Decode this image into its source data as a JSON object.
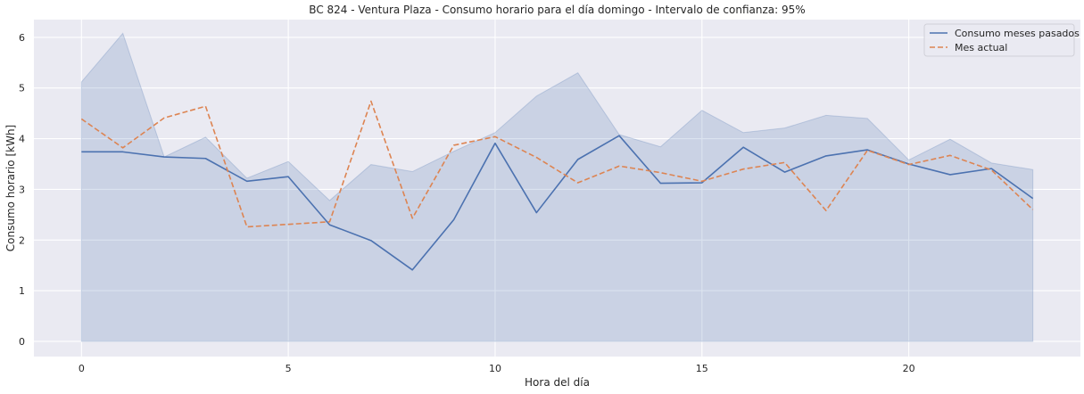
{
  "chart_data": {
    "type": "line",
    "title": "BC 824 - Ventura Plaza - Consumo horario para el día domingo - Intervalo de confianza: 95%",
    "xlabel": "Hora del día",
    "ylabel": "Consumo horario [kWh]",
    "x": [
      0,
      1,
      2,
      3,
      4,
      5,
      6,
      7,
      8,
      9,
      10,
      11,
      12,
      13,
      14,
      15,
      16,
      17,
      18,
      19,
      20,
      21,
      22,
      23
    ],
    "xlim": [
      -1.15,
      24.15
    ],
    "ylim": [
      -0.3,
      6.35
    ],
    "xticks": [
      0,
      5,
      10,
      15,
      20
    ],
    "yticks": [
      0,
      1,
      2,
      3,
      4,
      5,
      6
    ],
    "grid": true,
    "legend_position": "top-right",
    "band": {
      "lower": [
        0,
        0,
        0,
        0,
        0,
        0,
        0,
        0,
        0,
        0,
        0,
        0,
        0,
        0,
        0,
        0,
        0,
        0,
        0,
        0,
        0,
        0,
        0,
        0
      ],
      "upper": [
        5.12,
        6.08,
        3.64,
        4.03,
        3.22,
        3.55,
        2.78,
        3.49,
        3.35,
        3.75,
        4.12,
        4.84,
        5.3,
        4.08,
        3.84,
        4.56,
        4.12,
        4.21,
        4.46,
        4.4,
        3.58,
        3.99,
        3.52,
        3.39
      ],
      "color": "#4c72b0"
    },
    "series": [
      {
        "name": "Consumo meses pasados",
        "color": "#4c72b0",
        "style": "solid",
        "values": [
          3.74,
          3.74,
          3.64,
          3.61,
          3.16,
          3.25,
          2.3,
          1.99,
          1.41,
          2.4,
          3.91,
          2.54,
          3.59,
          4.06,
          3.12,
          3.13,
          3.83,
          3.34,
          3.66,
          3.78,
          3.5,
          3.29,
          3.41,
          2.82
        ]
      },
      {
        "name": "Mes actual",
        "color": "#dd8452",
        "style": "dashed",
        "values": [
          4.39,
          3.82,
          4.41,
          4.64,
          2.26,
          2.31,
          2.36,
          4.74,
          2.43,
          3.87,
          4.04,
          3.63,
          3.13,
          3.46,
          3.33,
          3.16,
          3.4,
          3.53,
          2.58,
          3.77,
          3.49,
          3.67,
          3.38,
          2.6
        ]
      }
    ]
  }
}
